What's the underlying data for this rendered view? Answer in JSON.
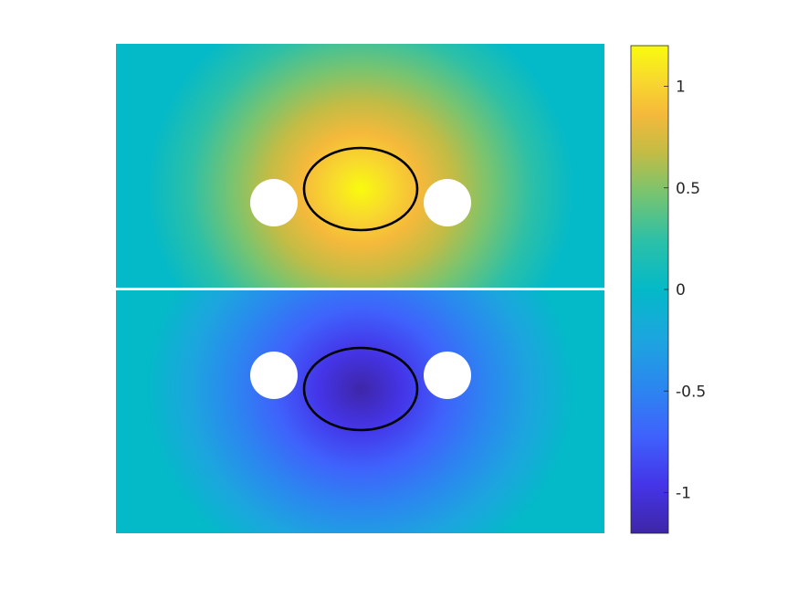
{
  "chart_data": {
    "type": "heatmap",
    "title": "",
    "xlabel": "",
    "ylabel": "",
    "colormap": "parula",
    "colorbar": {
      "clim": [
        -1.2,
        1.2
      ],
      "ticks": [
        1,
        0.5,
        0,
        -0.5,
        -1
      ],
      "tick_labels": [
        "1",
        "0.5",
        "0",
        "-0.5",
        "-1"
      ],
      "placement": "right"
    },
    "panels": [
      {
        "name": "top",
        "peak_value": 1.2,
        "sign": 1
      },
      {
        "name": "bottom",
        "peak_value": -1.2,
        "sign": -1
      }
    ],
    "features": {
      "holes_per_panel": 2,
      "ellipse_outline": true,
      "ellipse_color": "#000000",
      "hole_color": "#ffffff",
      "separator_color": "#ffffff"
    }
  }
}
